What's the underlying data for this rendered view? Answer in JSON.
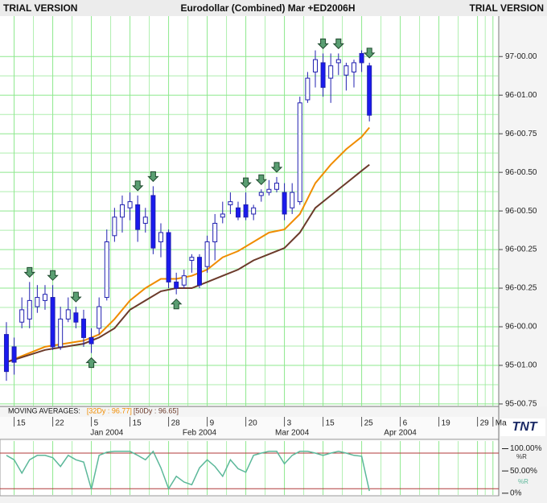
{
  "header": {
    "left": "TRIAL VERSION",
    "title": "Eurodollar (Combined) Mar +ED2006H",
    "right": "TRIAL VERSION"
  },
  "logo": "TNT",
  "chart_data": [
    {
      "type": "candlestick",
      "x": [
        0,
        1,
        2,
        3,
        4,
        5,
        6,
        7,
        8,
        9,
        10,
        11,
        12,
        13,
        14,
        15,
        16,
        17,
        18,
        19,
        20,
        21,
        22,
        23,
        24,
        25,
        26,
        27,
        28,
        29,
        30,
        31,
        32,
        33,
        34,
        35,
        36,
        37,
        38,
        39,
        40,
        41,
        42,
        43,
        44,
        45,
        46,
        47
      ],
      "open": [
        96.1,
        96.06,
        96.14,
        96.15,
        96.19,
        96.21,
        96.22,
        96.06,
        96.15,
        96.17,
        96.15,
        96.09,
        96.12,
        96.22,
        96.42,
        96.48,
        96.51,
        96.52,
        96.46,
        96.55,
        96.4,
        96.43,
        96.27,
        96.26,
        96.34,
        96.35,
        96.32,
        96.4,
        96.48,
        96.52,
        96.51,
        96.52,
        96.49,
        96.55,
        96.56,
        96.57,
        96.56,
        96.51,
        96.53,
        96.86,
        96.95,
        96.98,
        96.93,
        96.98,
        96.94,
        96.95,
        97.01,
        96.97
      ],
      "high": [
        96.14,
        96.09,
        96.22,
        96.27,
        96.26,
        96.26,
        96.26,
        96.19,
        96.22,
        96.19,
        96.18,
        96.12,
        96.22,
        96.44,
        96.51,
        96.55,
        96.56,
        96.55,
        96.51,
        96.58,
        96.46,
        96.44,
        96.3,
        96.31,
        96.36,
        96.36,
        96.42,
        96.49,
        96.53,
        96.56,
        96.53,
        96.56,
        96.52,
        96.57,
        96.6,
        96.61,
        96.59,
        96.59,
        96.87,
        96.95,
        97.02,
        97.01,
        97.01,
        97.01,
        96.98,
        96.99,
        97.02,
        96.98
      ],
      "low": [
        95.95,
        95.97,
        96.12,
        96.12,
        96.17,
        96.18,
        96.05,
        96.05,
        96.14,
        96.12,
        96.06,
        96.04,
        96.1,
        96.21,
        96.4,
        96.43,
        96.47,
        96.4,
        96.43,
        96.36,
        96.35,
        96.25,
        96.23,
        96.25,
        96.3,
        96.25,
        96.3,
        96.34,
        96.46,
        96.49,
        96.47,
        96.47,
        96.47,
        96.53,
        96.55,
        96.56,
        96.47,
        96.49,
        96.52,
        96.85,
        96.9,
        96.87,
        96.85,
        96.94,
        96.89,
        96.9,
        96.95,
        96.79
      ],
      "close": [
        95.98,
        96.01,
        96.18,
        96.21,
        96.22,
        96.23,
        96.06,
        96.15,
        96.18,
        96.14,
        96.09,
        96.07,
        96.19,
        96.4,
        96.48,
        96.52,
        96.53,
        96.44,
        96.48,
        96.38,
        96.43,
        96.27,
        96.25,
        96.29,
        96.35,
        96.26,
        96.4,
        96.46,
        96.49,
        96.53,
        96.48,
        96.48,
        96.51,
        96.56,
        96.57,
        96.59,
        96.49,
        96.56,
        96.85,
        96.93,
        96.99,
        96.9,
        96.97,
        96.99,
        96.97,
        96.98,
        96.98,
        96.81
      ],
      "up_color": "#ffffff",
      "down_color": "#1a1aee",
      "outline_color": "#2020b0",
      "xlim": [
        -0.83,
        63.75
      ],
      "ylim": [
        95.867,
        97.131
      ],
      "yticks": [
        {
          "value": 95.875,
          "label": "95-00.75"
        },
        {
          "value": 96.0,
          "label": "95-01.00"
        },
        {
          "value": 96.125,
          "label": "96-00.00"
        },
        {
          "value": 96.25,
          "label": "96-00.25"
        },
        {
          "value": 96.375,
          "label": "96-00.25"
        },
        {
          "value": 96.5,
          "label": "96-00.50"
        },
        {
          "value": 96.625,
          "label": "96-00.50"
        },
        {
          "value": 96.75,
          "label": "96-00.75"
        },
        {
          "value": 96.875,
          "label": "96-01.00"
        },
        {
          "value": 97.0,
          "label": "97-00.00"
        }
      ],
      "xticks": [
        {
          "value": 1,
          "label": "15"
        },
        {
          "value": 6,
          "label": "22"
        },
        {
          "value": 11,
          "label": "5"
        },
        {
          "value": 16,
          "label": "15"
        },
        {
          "value": 21,
          "label": "28"
        },
        {
          "value": 26,
          "label": "9"
        },
        {
          "value": 31,
          "label": "20"
        },
        {
          "value": 36,
          "label": "3"
        },
        {
          "value": 41,
          "label": "15"
        },
        {
          "value": 46,
          "label": "25"
        },
        {
          "value": 51,
          "label": "6"
        },
        {
          "value": 56,
          "label": "19"
        },
        {
          "value": 61,
          "label": "29"
        },
        {
          "value": 63,
          "label": "Ma"
        }
      ],
      "month_ticks": [
        {
          "value": 13,
          "label": "Jan 2004"
        },
        {
          "value": 25,
          "label": "Feb 2004"
        },
        {
          "value": 37,
          "label": "Mar 2004"
        },
        {
          "value": 51,
          "label": "Apr 2004"
        }
      ],
      "grid": true,
      "grid_color": "#8de88d",
      "ma_title": "MOVING AVERAGES:",
      "moving_averages": [
        {
          "name": "[32Dy : 96.77]",
          "color": "#f08c00",
          "x": [
            0,
            5,
            10,
            12,
            14,
            16,
            18,
            20,
            22,
            24,
            26,
            28,
            30,
            32,
            34,
            36,
            38,
            40,
            42,
            44,
            46,
            47
          ],
          "values": [
            96.01,
            96.06,
            96.08,
            96.1,
            96.15,
            96.21,
            96.25,
            96.28,
            96.28,
            96.29,
            96.31,
            96.35,
            96.37,
            96.4,
            96.43,
            96.44,
            96.49,
            96.59,
            96.65,
            96.7,
            96.74,
            96.77
          ]
        },
        {
          "name": "[50Dy : 96.65]",
          "color": "#6b3a2a",
          "x": [
            0,
            5,
            10,
            12,
            14,
            16,
            18,
            20,
            22,
            24,
            26,
            28,
            30,
            32,
            34,
            36,
            38,
            40,
            42,
            44,
            46,
            47
          ],
          "values": [
            96.01,
            96.05,
            96.07,
            96.09,
            96.12,
            96.18,
            96.21,
            96.24,
            96.25,
            96.25,
            96.27,
            96.29,
            96.31,
            96.34,
            96.36,
            96.38,
            96.43,
            96.51,
            96.55,
            96.59,
            96.63,
            96.65
          ]
        }
      ],
      "down_arrows": [
        3,
        6,
        9,
        17,
        19,
        31,
        33,
        35,
        41,
        43,
        47
      ],
      "up_arrows": [
        11,
        22
      ],
      "arrow_color": "#5a9e72"
    },
    {
      "type": "line",
      "ylabel": "%R",
      "x": [
        0,
        1,
        2,
        3,
        4,
        5,
        6,
        7,
        8,
        9,
        10,
        11,
        12,
        13,
        14,
        15,
        16,
        17,
        18,
        19,
        20,
        21,
        22,
        23,
        24,
        25,
        26,
        27,
        28,
        29,
        30,
        31,
        32,
        33,
        34,
        35,
        36,
        37,
        38,
        39,
        40,
        41,
        42,
        43,
        44,
        45,
        46,
        47
      ],
      "series": [
        {
          "name": "%R",
          "color": "#5cb89a",
          "values": [
            85,
            75,
            45,
            75,
            85,
            85,
            80,
            60,
            85,
            75,
            70,
            9,
            85,
            92,
            94,
            94,
            94,
            85,
            75,
            94,
            57,
            10,
            38,
            25,
            19,
            57,
            75,
            60,
            38,
            75,
            55,
            47,
            85,
            90,
            94,
            94,
            66,
            85,
            94,
            94,
            90,
            85,
            90,
            94,
            90,
            85,
            83,
            5
          ]
        }
      ],
      "xlim": [
        -0.83,
        63.75
      ],
      "ylim": [
        -5.7,
        120.8
      ],
      "yticks": [
        {
          "value": 100,
          "label": "100.00%"
        },
        {
          "value": 50,
          "label": "50.00%"
        },
        {
          "value": 0,
          "label": "0%"
        }
      ],
      "levels": [
        90,
        10
      ],
      "level_color": "#b03a3a"
    }
  ]
}
